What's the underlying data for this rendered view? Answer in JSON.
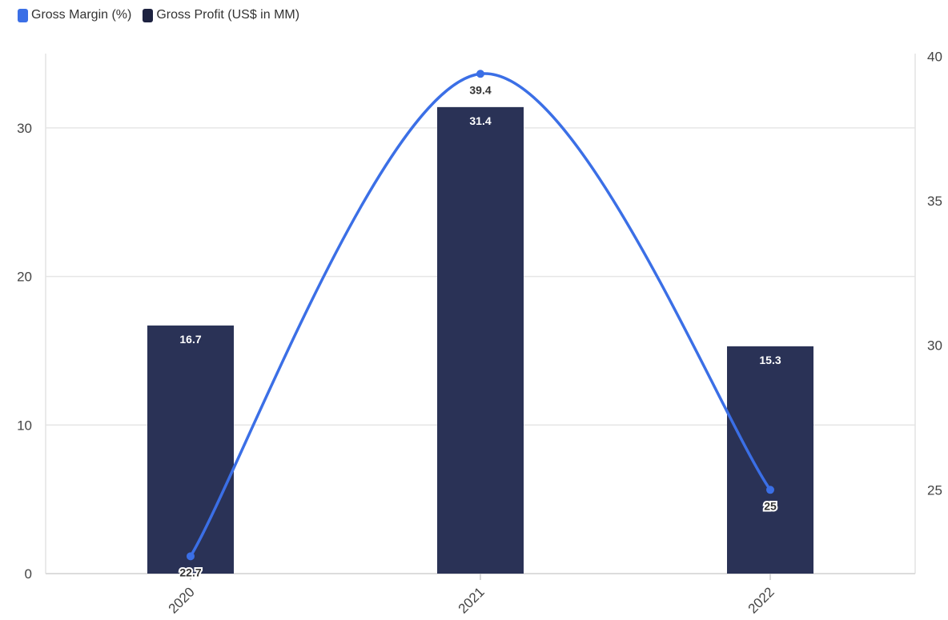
{
  "legend": {
    "margin_label": "Gross Margin (%)",
    "profit_label": "Gross Profit (US$ in MM)"
  },
  "colors": {
    "bar": "#2a3256",
    "line": "#3b6fe6",
    "grid": "#e6e6e6"
  },
  "chart_data": {
    "type": "bar+line",
    "categories": [
      "2020",
      "2021",
      "2022"
    ],
    "series": [
      {
        "name": "Gross Profit (US$ in MM)",
        "type": "bar",
        "axis": "left",
        "values": [
          16.7,
          31.4,
          15.3
        ]
      },
      {
        "name": "Gross Margin (%)",
        "type": "line",
        "axis": "right",
        "values": [
          22.7,
          39.4,
          25
        ]
      }
    ],
    "left_axis": {
      "ticks": [
        0,
        10,
        20,
        30
      ],
      "range": [
        0,
        35
      ]
    },
    "right_axis": {
      "ticks": [
        25,
        30,
        35,
        40
      ],
      "range": [
        22.1,
        40.1
      ]
    },
    "legend_position": "top-left",
    "grid": true
  }
}
